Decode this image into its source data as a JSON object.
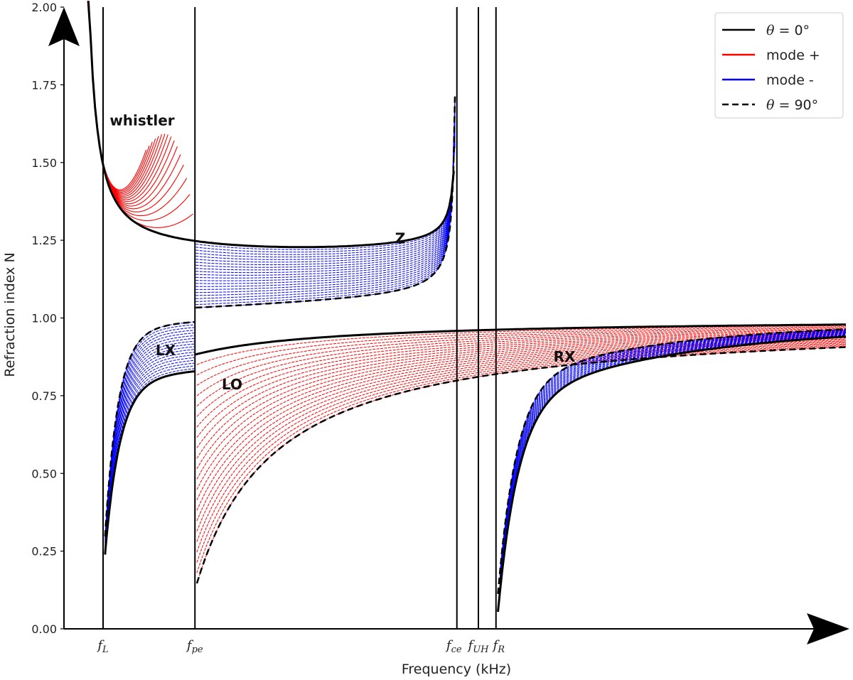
{
  "chart_data": {
    "type": "line",
    "title": "",
    "xlabel": "Frequency (kHz)",
    "ylabel": "Refraction index N",
    "ylim": [
      0,
      2.0
    ],
    "xlim": [
      0,
      20
    ],
    "grid": false,
    "legend_position": "top-right",
    "yticks": [
      {
        "value": 0.0,
        "label": "0.00"
      },
      {
        "value": 0.25,
        "label": "0.25"
      },
      {
        "value": 0.5,
        "label": "0.50"
      },
      {
        "value": 0.75,
        "label": "0.75"
      },
      {
        "value": 1.0,
        "label": "1.00"
      },
      {
        "value": 1.25,
        "label": "1.25"
      },
      {
        "value": 1.5,
        "label": "1.50"
      },
      {
        "value": 1.75,
        "label": "1.75"
      },
      {
        "value": 2.0,
        "label": "2.00"
      }
    ],
    "characteristic_frequencies": [
      {
        "x": 1.0,
        "base": "f",
        "sub": "L"
      },
      {
        "x": 3.35,
        "base": "f",
        "sub": "pe"
      },
      {
        "x": 10.05,
        "base": "f",
        "sub": "ce"
      },
      {
        "x": 10.6,
        "base": "f",
        "sub": "UH"
      },
      {
        "x": 11.05,
        "base": "f",
        "sub": "R"
      }
    ],
    "region_labels": [
      {
        "text": "whistler",
        "x": 2.0,
        "y": 1.62
      },
      {
        "text": "Z",
        "x": 8.6,
        "y": 1.24
      },
      {
        "text": "LX",
        "x": 2.6,
        "y": 0.88
      },
      {
        "text": "LO",
        "x": 4.3,
        "y": 0.77
      },
      {
        "text": "RX",
        "x": 12.8,
        "y": 0.86
      }
    ],
    "series": [
      {
        "name": "θ = 0°",
        "color": "#000000",
        "dash": "solid"
      },
      {
        "name": "mode +",
        "color": "#ff0000",
        "dash": "solid"
      },
      {
        "name": "mode -",
        "color": "#0000ff",
        "dash": "solid"
      },
      {
        "name": "θ = 90°",
        "color": "#000000",
        "dash": "dashed"
      }
    ],
    "legend": [
      {
        "key": "theta0",
        "label_prefix": "θ",
        "label_suffix": " = 0°",
        "color": "#000000",
        "dash": "solid"
      },
      {
        "key": "plus",
        "label": "mode +",
        "color": "#ff0000",
        "dash": "solid"
      },
      {
        "key": "minus",
        "label": "mode -",
        "color": "#0000ff",
        "dash": "solid"
      },
      {
        "key": "theta90",
        "label_prefix": "θ",
        "label_suffix": " = 90°",
        "color": "#000000",
        "dash": "dashed"
      }
    ]
  }
}
